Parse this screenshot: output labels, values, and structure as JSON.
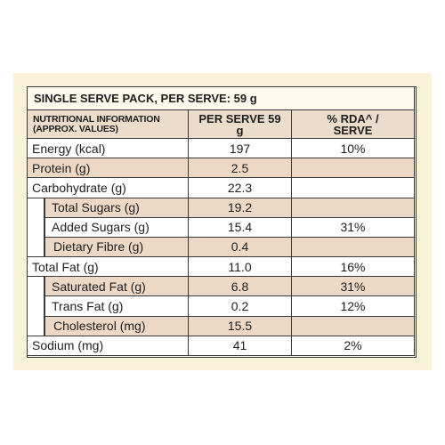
{
  "title": "SINGLE SERVE PACK, PER SERVE: 59 g",
  "header": [
    "NUTRITIONAL INFORMATION (APPROX. VALUES)",
    "PER SERVE 59 g",
    "% RDA^ / SERVE"
  ],
  "rows": [
    {
      "name": "Energy (kcal)",
      "level": 0,
      "per_serve": "197",
      "rda": "10%"
    },
    {
      "name": "Protein (g)",
      "level": 0,
      "per_serve": "2.5",
      "rda": null
    },
    {
      "name": "Carbohydrate (g)",
      "level": 0,
      "per_serve": "22.3",
      "rda": null
    },
    {
      "name": "Total Sugars (g)",
      "level": 1,
      "per_serve": "19.2",
      "rda": null
    },
    {
      "name": "Added Sugars (g)",
      "level": 1,
      "per_serve": "15.4",
      "rda": "31%"
    },
    {
      "name": "Dietary Fibre (g)",
      "level": 2,
      "per_serve": "0.4",
      "rda": null
    },
    {
      "name": "Total Fat (g)",
      "level": 0,
      "per_serve": "11.0",
      "rda": "16%"
    },
    {
      "name": "Saturated Fat (g)",
      "level": 1,
      "per_serve": "6.8",
      "rda": "31%"
    },
    {
      "name": "Trans Fat (g)",
      "level": 1,
      "per_serve": "0.2",
      "rda": "12%"
    },
    {
      "name": "Cholesterol (mg)",
      "level": 2,
      "per_serve": "15.5",
      "rda": null
    },
    {
      "name": "Sodium (mg)",
      "level": 0,
      "per_serve": "41",
      "rda": "2%"
    }
  ]
}
